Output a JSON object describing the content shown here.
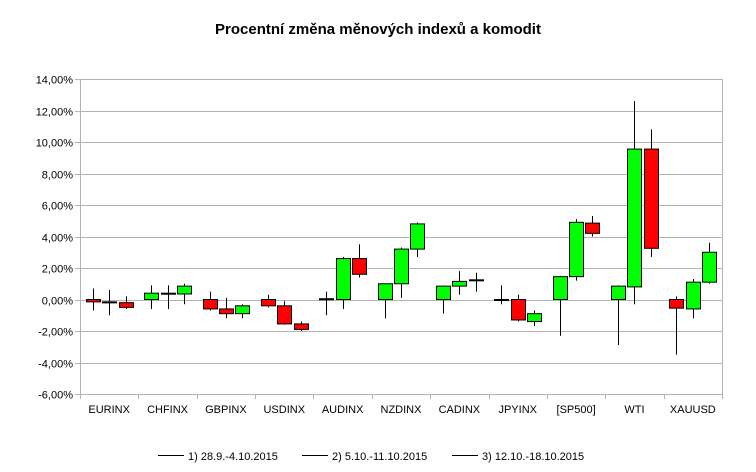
{
  "chart_data": {
    "type": "candlestick",
    "title": "Procentní změna měnových indexů a komodit",
    "xlabel": "",
    "ylabel": "",
    "ylim": [
      -6,
      14
    ],
    "ytick_step": 2,
    "ytick_labels": [
      "-6,00%",
      "-4,00%",
      "-2,00%",
      "0,00%",
      "2,00%",
      "4,00%",
      "6,00%",
      "8,00%",
      "10,00%",
      "12,00%",
      "14,00%"
    ],
    "grid": true,
    "legend_position": "bottom",
    "up_color": "#00ff00",
    "down_color": "#ff0000",
    "periods": [
      "1) 28.9.-4.10.2015",
      "2) 5.10.-11.10.2015",
      "3) 12.10.-18.10.2015"
    ],
    "categories": [
      "EURINX",
      "CHFINX",
      "GBPINX",
      "USDINX",
      "AUDINX",
      "NZDINX",
      "CADINX",
      "JPYINX",
      "[SP500]",
      "WTI",
      "XAUUSD"
    ],
    "series": [
      {
        "category": "EURINX",
        "candles": [
          {
            "open": 0.0,
            "high": 0.7,
            "low": -0.7,
            "close": -0.15
          },
          {
            "open": -0.15,
            "high": 0.6,
            "low": -1.0,
            "close": -0.2
          },
          {
            "open": -0.2,
            "high": 0.2,
            "low": -0.6,
            "close": -0.5
          }
        ]
      },
      {
        "category": "CHFINX",
        "candles": [
          {
            "open": 0.0,
            "high": 0.9,
            "low": -0.6,
            "close": 0.4
          },
          {
            "open": 0.4,
            "high": 0.9,
            "low": -0.6,
            "close": 0.35
          },
          {
            "open": 0.35,
            "high": 1.0,
            "low": -0.3,
            "close": 0.85
          }
        ]
      },
      {
        "category": "GBPINX",
        "candles": [
          {
            "open": 0.0,
            "high": 0.5,
            "low": -0.7,
            "close": -0.6
          },
          {
            "open": -0.6,
            "high": 0.1,
            "low": -1.2,
            "close": -0.9
          },
          {
            "open": -0.9,
            "high": -0.3,
            "low": -1.2,
            "close": -0.4
          }
        ]
      },
      {
        "category": "USDINX",
        "candles": [
          {
            "open": 0.0,
            "high": 0.3,
            "low": -0.5,
            "close": -0.4
          },
          {
            "open": -0.4,
            "high": -0.1,
            "low": -1.6,
            "close": -1.55
          },
          {
            "open": -1.55,
            "high": -1.4,
            "low": -2.0,
            "close": -1.9
          }
        ]
      },
      {
        "category": "AUDINX",
        "candles": [
          {
            "open": 0.0,
            "high": 0.5,
            "low": -1.0,
            "close": 0.05
          },
          {
            "open": 0.0,
            "high": 2.7,
            "low": -0.6,
            "close": 2.6
          },
          {
            "open": 2.6,
            "high": 3.5,
            "low": 1.4,
            "close": 1.6
          }
        ]
      },
      {
        "category": "NZDINX",
        "candles": [
          {
            "open": 0.0,
            "high": 1.0,
            "low": -1.2,
            "close": 1.0
          },
          {
            "open": 1.0,
            "high": 3.3,
            "low": 0.1,
            "close": 3.2
          },
          {
            "open": 3.2,
            "high": 4.9,
            "low": 2.7,
            "close": 4.8
          }
        ]
      },
      {
        "category": "CADINX",
        "candles": [
          {
            "open": 0.0,
            "high": 0.9,
            "low": -0.9,
            "close": 0.85
          },
          {
            "open": 0.85,
            "high": 1.8,
            "low": 0.3,
            "close": 1.15
          },
          {
            "open": 1.2,
            "high": 1.7,
            "low": 0.5,
            "close": 1.25
          }
        ]
      },
      {
        "category": "JPYINX",
        "candles": [
          {
            "open": 0.0,
            "high": 0.9,
            "low": -0.3,
            "close": 0.0
          },
          {
            "open": 0.0,
            "high": 0.3,
            "low": -1.4,
            "close": -1.3
          },
          {
            "open": -1.4,
            "high": -0.7,
            "low": -1.7,
            "close": -0.9
          }
        ]
      },
      {
        "category": "[SP500]",
        "candles": [
          {
            "open": 0.0,
            "high": 1.5,
            "low": -2.3,
            "close": 1.45
          },
          {
            "open": 1.45,
            "high": 5.1,
            "low": 1.2,
            "close": 4.9
          },
          {
            "open": 4.85,
            "high": 5.3,
            "low": 4.0,
            "close": 4.2
          }
        ]
      },
      {
        "category": "WTI",
        "candles": [
          {
            "open": 0.0,
            "high": 0.9,
            "low": -2.9,
            "close": 0.85
          },
          {
            "open": 0.8,
            "high": 12.6,
            "low": -0.3,
            "close": 9.55
          },
          {
            "open": 9.55,
            "high": 10.8,
            "low": 2.7,
            "close": 3.25
          }
        ]
      },
      {
        "category": "XAUUSD",
        "candles": [
          {
            "open": 0.0,
            "high": 0.2,
            "low": -3.5,
            "close": -0.55
          },
          {
            "open": -0.6,
            "high": 1.3,
            "low": -1.2,
            "close": 1.1
          },
          {
            "open": 1.1,
            "high": 3.6,
            "low": 1.0,
            "close": 3.0
          }
        ]
      }
    ]
  }
}
